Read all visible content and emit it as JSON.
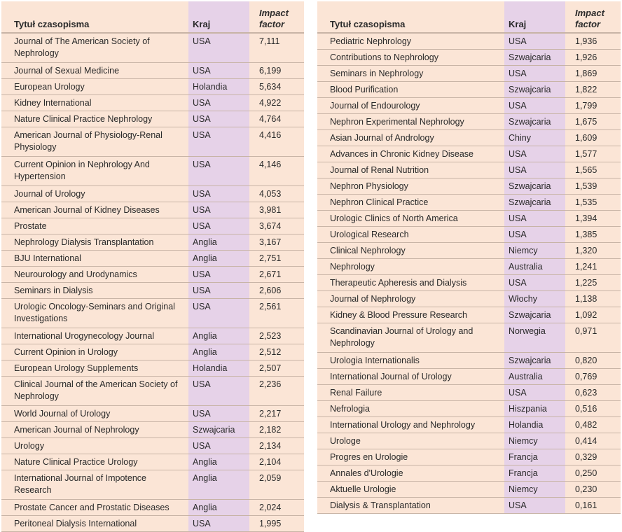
{
  "headers": {
    "title": "Tytuł czasopisma",
    "country": "Kraj",
    "impact": "Impact factor"
  },
  "left_rows": [
    {
      "title": "Journal of The American Society of Nephrology",
      "country": "USA",
      "impact": "7,111"
    },
    {
      "title": "Journal of Sexual Medicine",
      "country": "USA",
      "impact": "6,199"
    },
    {
      "title": "European Urology",
      "country": "Holandia",
      "impact": "5,634"
    },
    {
      "title": "Kidney International",
      "country": "USA",
      "impact": "4,922"
    },
    {
      "title": "Nature Clinical Practice Nephrology",
      "country": "USA",
      "impact": "4,764"
    },
    {
      "title": "American Journal of Physiology-Renal Physiology",
      "country": "USA",
      "impact": "4,416"
    },
    {
      "title": "Current Opinion in Nephrology And Hypertension",
      "country": "USA",
      "impact": "4,146"
    },
    {
      "title": "Journal of Urology",
      "country": "USA",
      "impact": "4,053"
    },
    {
      "title": "American Journal of Kidney Diseases",
      "country": "USA",
      "impact": "3,981"
    },
    {
      "title": "Prostate",
      "country": "USA",
      "impact": "3,674"
    },
    {
      "title": "Nephrology Dialysis Transplantation",
      "country": "Anglia",
      "impact": "3,167"
    },
    {
      "title": "BJU International",
      "country": "Anglia",
      "impact": "2,751"
    },
    {
      "title": "Neurourology and Urodynamics",
      "country": "USA",
      "impact": "2,671"
    },
    {
      "title": "Seminars in Dialysis",
      "country": "USA",
      "impact": "2,606"
    },
    {
      "title": "Urologic Oncology-Seminars and Original Investigations",
      "country": "USA",
      "impact": "2,561"
    },
    {
      "title": "International Urogynecology Journal",
      "country": "Anglia",
      "impact": "2,523"
    },
    {
      "title": "Current Opinion in Urology",
      "country": "Anglia",
      "impact": "2,512"
    },
    {
      "title": "European Urology Supplements",
      "country": "Holandia",
      "impact": "2,507"
    },
    {
      "title": "Clinical Journal of the American Society of Nephrology",
      "country": "USA",
      "impact": "2,236"
    },
    {
      "title": "World Journal of Urology",
      "country": "USA",
      "impact": "2,217"
    },
    {
      "title": "American Journal of Nephrology",
      "country": "Szwajcaria",
      "impact": "2,182"
    },
    {
      "title": "Urology",
      "country": "USA",
      "impact": "2,134"
    },
    {
      "title": "Nature Clinical Practice Urology",
      "country": "Anglia",
      "impact": "2,104"
    },
    {
      "title": "International Journal of Impotence Research",
      "country": "Anglia",
      "impact": "2,059"
    },
    {
      "title": "Prostate Cancer and Prostatic Diseases",
      "country": "Anglia",
      "impact": "2,024"
    },
    {
      "title": "Peritoneal Dialysis International",
      "country": "USA",
      "impact": "1,995"
    }
  ],
  "right_rows": [
    {
      "title": "Pediatric Nephrology",
      "country": "USA",
      "impact": "1,936"
    },
    {
      "title": "Contributions to Nephrology",
      "country": "Szwajcaria",
      "impact": "1,926"
    },
    {
      "title": "Seminars in Nephrology",
      "country": "USA",
      "impact": "1,869"
    },
    {
      "title": "Blood Purification",
      "country": "Szwajcaria",
      "impact": "1,822"
    },
    {
      "title": "Journal of Endourology",
      "country": "USA",
      "impact": "1,799"
    },
    {
      "title": "Nephron Experimental Nephrology",
      "country": "Szwajcaria",
      "impact": "1,675"
    },
    {
      "title": "Asian Journal of Andrology",
      "country": "Chiny",
      "impact": "1,609"
    },
    {
      "title": "Advances in Chronic Kidney Disease",
      "country": "USA",
      "impact": "1,577"
    },
    {
      "title": "Journal of Renal Nutrition",
      "country": "USA",
      "impact": "1,565"
    },
    {
      "title": "Nephron Physiology",
      "country": "Szwajcaria",
      "impact": "1,539"
    },
    {
      "title": "Nephron Clinical Practice",
      "country": "Szwajcaria",
      "impact": "1,535"
    },
    {
      "title": "Urologic Clinics of North America",
      "country": "USA",
      "impact": "1,394"
    },
    {
      "title": "Urological Research",
      "country": "USA",
      "impact": "1,385"
    },
    {
      "title": "Clinical Nephrology",
      "country": "Niemcy",
      "impact": "1,320"
    },
    {
      "title": "Nephrology",
      "country": "Australia",
      "impact": "1,241"
    },
    {
      "title": "Therapeutic Apheresis and Dialysis",
      "country": "USA",
      "impact": "1,225"
    },
    {
      "title": "Journal of Nephrology",
      "country": "Włochy",
      "impact": "1,138"
    },
    {
      "title": "Kidney & Blood Pressure Research",
      "country": "Szwajcaria",
      "impact": "1,092"
    },
    {
      "title": "Scandinavian Journal of Urology and Nephrology",
      "country": "Norwegia",
      "impact": "0,971"
    },
    {
      "title": "Urologia Internationalis",
      "country": "Szwajcaria",
      "impact": "0,820"
    },
    {
      "title": "International Journal of Urology",
      "country": "Australia",
      "impact": "0,769"
    },
    {
      "title": "Renal Failure",
      "country": "USA",
      "impact": "0,623"
    },
    {
      "title": "Nefrologia",
      "country": "Hiszpania",
      "impact": "0,516"
    },
    {
      "title": "International Urology and Nephrology",
      "country": "Holandia",
      "impact": "0,482"
    },
    {
      "title": "Urologe",
      "country": "Niemcy",
      "impact": "0,414"
    },
    {
      "title": "Progres en Urologie",
      "country": "Francja",
      "impact": "0,329"
    },
    {
      "title": "Annales d'Urologie",
      "country": "Francja",
      "impact": "0,250"
    },
    {
      "title": "Aktuelle Urologie",
      "country": "Niemcy",
      "impact": "0,230"
    },
    {
      "title": "Dialysis & Transplantation",
      "country": "USA",
      "impact": "0,161"
    }
  ]
}
